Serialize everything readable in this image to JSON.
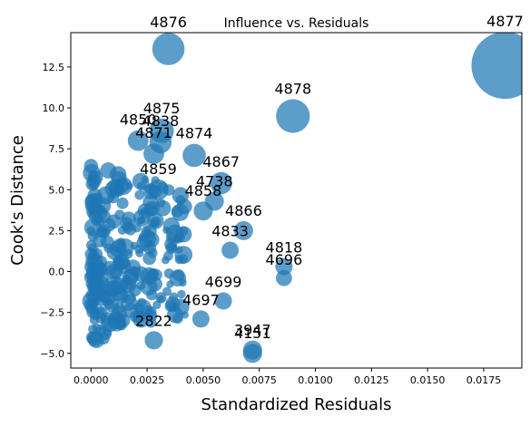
{
  "chart_data": {
    "type": "scatter",
    "title": "Influence vs. Residuals",
    "xlabel": "Standardized Residuals",
    "ylabel": "Cook's Distance",
    "xlim": [
      -0.0009,
      0.0192
    ],
    "ylim": [
      -5.9,
      14.6
    ],
    "grid": false,
    "marker_color": "#1f77b4",
    "x_ticks": [
      {
        "value": 0.0,
        "label": "0.0000"
      },
      {
        "value": 0.0025,
        "label": "0.0025"
      },
      {
        "value": 0.005,
        "label": "0.0050"
      },
      {
        "value": 0.0075,
        "label": "0.0075"
      },
      {
        "value": 0.01,
        "label": "0.0100"
      },
      {
        "value": 0.0125,
        "label": "0.0125"
      },
      {
        "value": 0.015,
        "label": "0.0150"
      },
      {
        "value": 0.0175,
        "label": "0.0175"
      }
    ],
    "y_ticks": [
      {
        "value": -5.0,
        "label": "−5.0"
      },
      {
        "value": -2.5,
        "label": "−2.5"
      },
      {
        "value": 0.0,
        "label": "0.0"
      },
      {
        "value": 2.5,
        "label": "2.5"
      },
      {
        "value": 5.0,
        "label": "5.0"
      },
      {
        "value": 7.5,
        "label": "7.5"
      },
      {
        "value": 10.0,
        "label": "10.0"
      },
      {
        "value": 12.5,
        "label": "12.5"
      }
    ],
    "points": [
      {
        "label": "4877",
        "x": 0.01845,
        "y": 12.6,
        "influence": 1.0
      },
      {
        "label": "4876",
        "x": 0.00345,
        "y": 13.6,
        "influence": 0.16
      },
      {
        "label": "4878",
        "x": 0.009,
        "y": 9.5,
        "influence": 0.18
      },
      {
        "label": "4875",
        "x": 0.00315,
        "y": 8.6,
        "influence": 0.07
      },
      {
        "label": "4838",
        "x": 0.0031,
        "y": 7.9,
        "influence": 0.05
      },
      {
        "label": "4874",
        "x": 0.0046,
        "y": 7.1,
        "influence": 0.06
      },
      {
        "label": "4850",
        "x": 0.0021,
        "y": 8.0,
        "influence": 0.04
      },
      {
        "label": "4871",
        "x": 0.0028,
        "y": 7.2,
        "influence": 0.04
      },
      {
        "label": "4867",
        "x": 0.0058,
        "y": 5.4,
        "influence": 0.05
      },
      {
        "label": "4859",
        "x": 0.003,
        "y": 5.0,
        "influence": 0.04
      },
      {
        "label": "4738",
        "x": 0.0055,
        "y": 4.3,
        "influence": 0.03
      },
      {
        "label": "4858",
        "x": 0.005,
        "y": 3.7,
        "influence": 0.03
      },
      {
        "label": "4866",
        "x": 0.0068,
        "y": 2.5,
        "influence": 0.03
      },
      {
        "label": "4833",
        "x": 0.0062,
        "y": 1.3,
        "influence": 0.02
      },
      {
        "label": "4818",
        "x": 0.0086,
        "y": 0.3,
        "influence": 0.02
      },
      {
        "label": "4696",
        "x": 0.0086,
        "y": -0.4,
        "influence": 0.015
      },
      {
        "label": "4699",
        "x": 0.0059,
        "y": -1.8,
        "influence": 0.02
      },
      {
        "label": "4697",
        "x": 0.0049,
        "y": -2.9,
        "influence": 0.02
      },
      {
        "label": "2822",
        "x": 0.0028,
        "y": -4.2,
        "influence": 0.025
      },
      {
        "label": "3947",
        "x": 0.0072,
        "y": -4.8,
        "influence": 0.03
      },
      {
        "label": "4151",
        "x": 0.0072,
        "y": -5.0,
        "influence": 0.03
      }
    ]
  }
}
